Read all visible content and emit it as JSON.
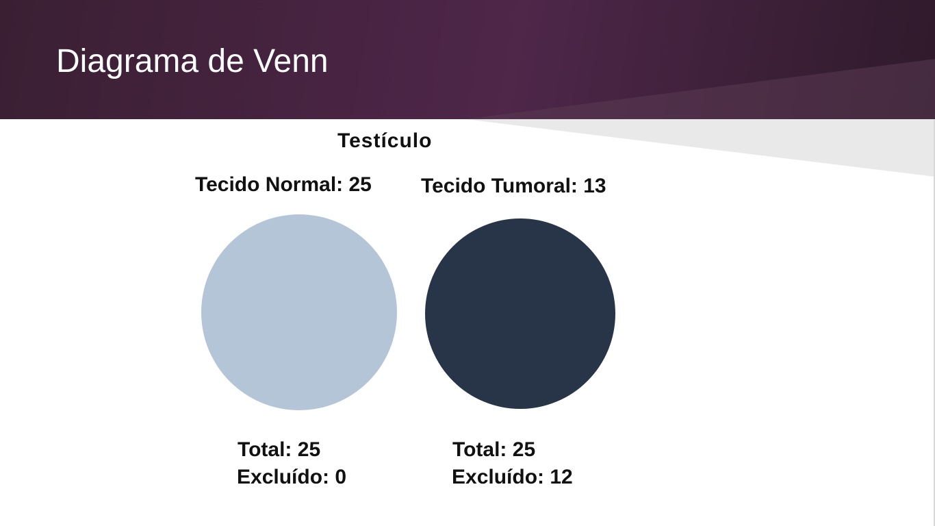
{
  "slide": {
    "title": "Diagrama de Venn"
  },
  "diagram": {
    "title": "Testículo",
    "sets": [
      {
        "label": "Tecido Normal: 25",
        "count": 25,
        "color": "#b5c5d8",
        "total_label": "Total: 25",
        "excluded_label": "Excluído: 0"
      },
      {
        "label": "Tecido Tumoral: 13",
        "count": 13,
        "color": "#283549",
        "total_label": "Total: 25",
        "excluded_label": "Excluído: 12"
      }
    ]
  },
  "theme": {
    "header_color": "#4b2545",
    "accent_light": "#e8e8e8"
  }
}
